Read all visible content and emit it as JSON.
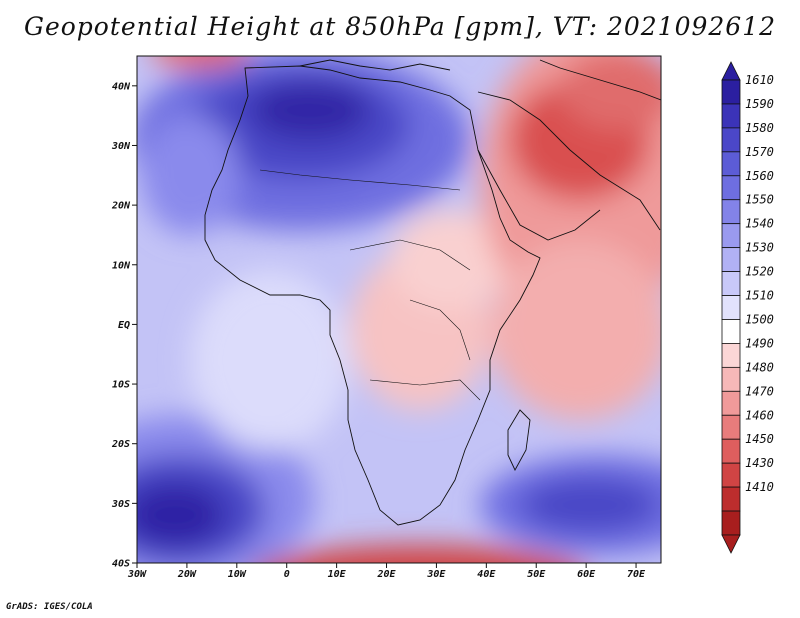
{
  "title": "Geopotential Height at 850hPa [gpm], VT: 2021092612",
  "credit": "GrADS: IGES/COLA",
  "map": {
    "variable": "Geopotential Height",
    "level": "850hPa",
    "units": "gpm",
    "valid_time": "2021092612",
    "lon_range": [
      -30,
      75
    ],
    "lat_range": [
      -40,
      45
    ],
    "lat_ticks": [
      {
        "value": 40,
        "label": "40N"
      },
      {
        "value": 30,
        "label": "30N"
      },
      {
        "value": 20,
        "label": "20N"
      },
      {
        "value": 10,
        "label": "10N"
      },
      {
        "value": 0,
        "label": "EQ"
      },
      {
        "value": -10,
        "label": "10S"
      },
      {
        "value": -20,
        "label": "20S"
      },
      {
        "value": -30,
        "label": "30S"
      },
      {
        "value": -40,
        "label": "40S"
      }
    ],
    "lon_ticks": [
      {
        "value": -30,
        "label": "30W"
      },
      {
        "value": -20,
        "label": "20W"
      },
      {
        "value": -10,
        "label": "10W"
      },
      {
        "value": 0,
        "label": "0"
      },
      {
        "value": 10,
        "label": "10E"
      },
      {
        "value": 20,
        "label": "20E"
      },
      {
        "value": 30,
        "label": "30E"
      },
      {
        "value": 40,
        "label": "40E"
      },
      {
        "value": 50,
        "label": "50E"
      },
      {
        "value": 60,
        "label": "60E"
      },
      {
        "value": 70,
        "label": "70E"
      }
    ]
  },
  "colorbar": {
    "labels": [
      "1610",
      "1590",
      "1580",
      "1570",
      "1560",
      "1550",
      "1540",
      "1530",
      "1520",
      "1510",
      "1500",
      "1490",
      "1480",
      "1470",
      "1460",
      "1450",
      "1430",
      "1410"
    ],
    "colors": [
      "#2b1fa0",
      "#3b33b8",
      "#4b47c8",
      "#5c5cd6",
      "#6e6ee0",
      "#8383e8",
      "#9a9aef",
      "#b1b1f4",
      "#c8c8f8",
      "#e2e2fc",
      "#ffffff",
      "#fbd6d6",
      "#f6b8b8",
      "#f09a9a",
      "#e87c7c",
      "#de5e5e",
      "#d04444",
      "#bd2d2d",
      "#a81e1e"
    ]
  }
}
